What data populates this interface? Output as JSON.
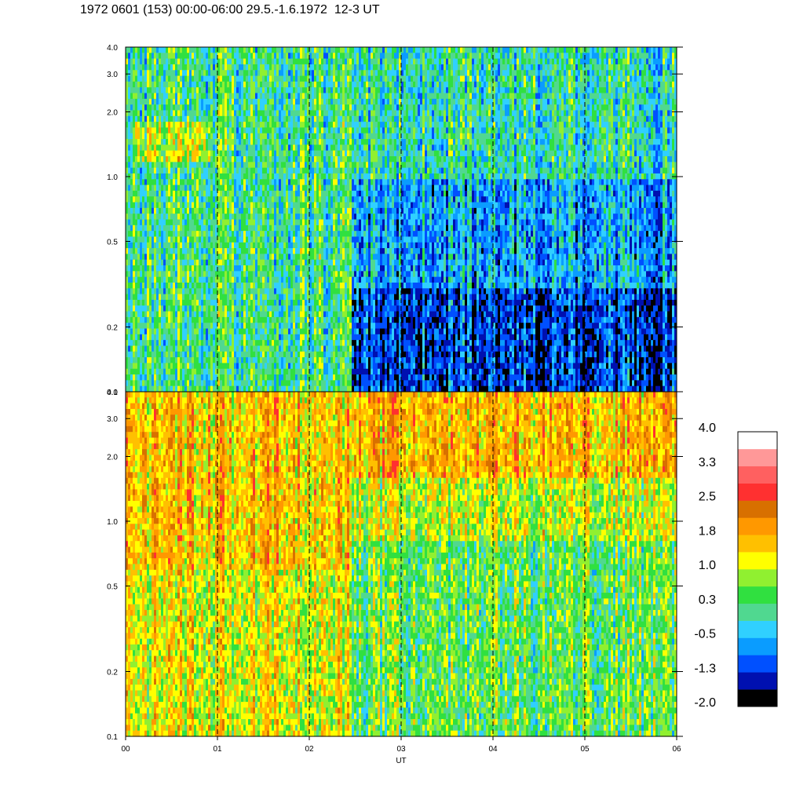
{
  "header": {
    "title": "1972 0601 (153) 00:00-06:00 29.5.-1.6.1972  12-3 UT"
  },
  "chart_data": [
    {
      "type": "heatmap",
      "panel": "upper",
      "title": "",
      "xlabel": "",
      "ylabel": "",
      "y_scale": "log",
      "ylim": [
        0.1,
        4.0
      ],
      "xlim": [
        0,
        6
      ],
      "x_ticks": [
        "00",
        "01",
        "02",
        "03",
        "04",
        "05",
        "06"
      ],
      "y_ticks": [
        {
          "value": 0.1,
          "label": "0.1"
        },
        {
          "value": 0.2,
          "label": "0.2"
        },
        {
          "value": 0.5,
          "label": "0.5"
        },
        {
          "value": 1.0,
          "label": "1.0"
        },
        {
          "value": 2.0,
          "label": "2.0"
        },
        {
          "value": 3.0,
          "label": "3.0"
        },
        {
          "value": 4.0,
          "label": "4.0"
        }
      ],
      "grid": "dashed vertical lines at each hour",
      "regimes": [
        {
          "x_start": 0.0,
          "x_end": 2.45,
          "y_start": 0.1,
          "y_end": 4.0,
          "level": 0.2
        },
        {
          "x_start": 2.45,
          "x_end": 6.0,
          "y_start": 0.1,
          "y_end": 0.3,
          "level": -1.2
        },
        {
          "x_start": 2.45,
          "x_end": 6.0,
          "y_start": 0.3,
          "y_end": 1.0,
          "level": -0.6
        },
        {
          "x_start": 2.45,
          "x_end": 6.0,
          "y_start": 1.0,
          "y_end": 4.0,
          "level": 0.0
        },
        {
          "x_start": 0.1,
          "x_end": 0.9,
          "y_start": 1.2,
          "y_end": 1.8,
          "level": 1.0
        }
      ]
    },
    {
      "type": "heatmap",
      "panel": "lower",
      "title": "",
      "xlabel": "UT",
      "ylabel": "",
      "y_scale": "log",
      "ylim": [
        0.1,
        4.0
      ],
      "xlim": [
        0,
        6
      ],
      "x_ticks": [
        "00",
        "01",
        "02",
        "03",
        "04",
        "05",
        "06"
      ],
      "y_ticks": [
        {
          "value": 0.1,
          "label": "0.1"
        },
        {
          "value": 0.2,
          "label": "0.2"
        },
        {
          "value": 0.5,
          "label": "0.5"
        },
        {
          "value": 1.0,
          "label": "1.0"
        },
        {
          "value": 2.0,
          "label": "2.0"
        },
        {
          "value": 3.0,
          "label": "3.0"
        },
        {
          "value": 4.0,
          "label": "4.0"
        }
      ],
      "grid": "dashed vertical lines at each hour",
      "regimes": [
        {
          "x_start": 0.0,
          "x_end": 2.45,
          "y_start": 0.1,
          "y_end": 0.6,
          "level": 1.2
        },
        {
          "x_start": 0.0,
          "x_end": 2.45,
          "y_start": 0.6,
          "y_end": 4.0,
          "level": 1.6
        },
        {
          "x_start": 2.45,
          "x_end": 6.0,
          "y_start": 0.1,
          "y_end": 0.8,
          "level": 0.5
        },
        {
          "x_start": 2.45,
          "x_end": 6.0,
          "y_start": 0.8,
          "y_end": 1.6,
          "level": 1.0
        },
        {
          "x_start": 2.45,
          "x_end": 6.0,
          "y_start": 1.6,
          "y_end": 4.0,
          "level": 1.7
        }
      ]
    }
  ],
  "colorbar": {
    "min": -2.0,
    "max": 4.0,
    "labels": [
      "4.0",
      "3.3",
      "2.5",
      "1.8",
      "1.0",
      "0.3",
      "-0.5",
      "-1.3",
      "-2.0"
    ],
    "colors": [
      "#000000",
      "#0010b0",
      "#0050ff",
      "#0a9cff",
      "#30d0ff",
      "#50d890",
      "#30e040",
      "#90f030",
      "#ffff00",
      "#ffc000",
      "#ff9800",
      "#d87000",
      "#ff3030",
      "#ff6060",
      "#ff9898",
      "#ffffff"
    ]
  }
}
